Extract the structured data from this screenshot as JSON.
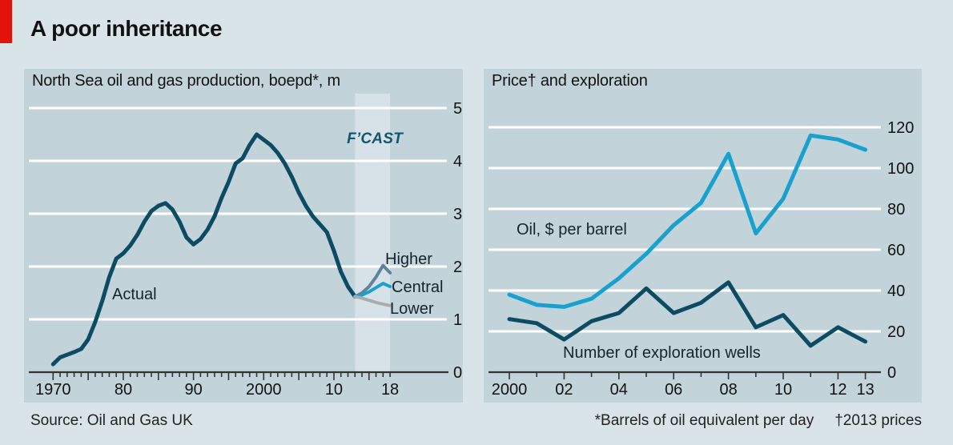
{
  "header": {
    "title": "A poor inheritance",
    "accent_color": "#e3120b"
  },
  "colors": {
    "page_background": "#d9e4e8",
    "panel_background": "#c2d3da",
    "forecast_band": "#d6e2e7",
    "gridline": "#ffffff",
    "axis": "#333333",
    "dark_teal": "#0d4b62",
    "bright_blue": "#18a0ce",
    "steel_blue": "#5f8499",
    "grey": "#a9abad"
  },
  "footer": {
    "source": "Source: Oil and Gas UK",
    "note_left": "*Barrels of oil equivalent per day",
    "note_right": "†2013 prices"
  },
  "chart_data": [
    {
      "id": "production",
      "type": "line",
      "title": "North Sea oil and gas production, boepd*, m",
      "ylim": [
        0,
        5
      ],
      "yticks": [
        0,
        1,
        2,
        3,
        4,
        5
      ],
      "grid": "on",
      "xlabels": [
        {
          "year": 1970,
          "text": "1970"
        },
        {
          "year": 1980,
          "text": "80"
        },
        {
          "year": 1990,
          "text": "90"
        },
        {
          "year": 2000,
          "text": "2000"
        },
        {
          "year": 2010,
          "text": "10"
        },
        {
          "year": 2018,
          "text": "18"
        }
      ],
      "forecast_band": {
        "from": 2013,
        "to": 2018,
        "label": "F’CAST"
      },
      "series": [
        {
          "name": "Actual",
          "color": "#0d4b62",
          "year_start": 1970,
          "values": [
            0.15,
            0.28,
            0.33,
            0.38,
            0.44,
            0.62,
            0.95,
            1.35,
            1.8,
            2.15,
            2.25,
            2.4,
            2.6,
            2.85,
            3.05,
            3.15,
            3.2,
            3.08,
            2.85,
            2.55,
            2.42,
            2.52,
            2.7,
            2.95,
            3.3,
            3.6,
            3.95,
            4.05,
            4.3,
            4.5,
            4.4,
            4.3,
            4.15,
            3.95,
            3.7,
            3.4,
            3.15,
            2.95,
            2.8,
            2.65,
            2.3,
            1.9,
            1.62,
            1.43
          ]
        },
        {
          "name": "Higher",
          "color": "#5f8499",
          "year_start": 2013,
          "values": [
            1.43,
            1.5,
            1.62,
            1.8,
            2.02,
            1.88
          ]
        },
        {
          "name": "Central",
          "color": "#18a0ce",
          "year_start": 2013,
          "values": [
            1.43,
            1.46,
            1.52,
            1.6,
            1.68,
            1.62
          ]
        },
        {
          "name": "Lower",
          "color": "#a9abad",
          "year_start": 2013,
          "values": [
            1.43,
            1.4,
            1.36,
            1.32,
            1.29,
            1.26
          ]
        }
      ]
    },
    {
      "id": "price",
      "type": "line",
      "title": "Price† and exploration",
      "ylim": [
        0,
        120
      ],
      "yticks": [
        0,
        20,
        40,
        60,
        80,
        100,
        120
      ],
      "grid": "on",
      "xlabels": [
        {
          "year": 2000,
          "text": "2000"
        },
        {
          "year": 2002,
          "text": "02"
        },
        {
          "year": 2004,
          "text": "04"
        },
        {
          "year": 2006,
          "text": "06"
        },
        {
          "year": 2008,
          "text": "08"
        },
        {
          "year": 2010,
          "text": "10"
        },
        {
          "year": 2012,
          "text": "12"
        },
        {
          "year": 2013,
          "text": "13"
        }
      ],
      "series": [
        {
          "name": "Oil, $ per barrel",
          "color": "#18a0ce",
          "year_start": 2000,
          "values": [
            38,
            33,
            32,
            36,
            46,
            58,
            72,
            83,
            107,
            68,
            85,
            116,
            114,
            109
          ]
        },
        {
          "name": "Number of exploration wells",
          "color": "#0d4b62",
          "year_start": 2000,
          "values": [
            26,
            24,
            16,
            25,
            29,
            41,
            29,
            34,
            44,
            22,
            28,
            13,
            22,
            15
          ]
        }
      ]
    }
  ]
}
